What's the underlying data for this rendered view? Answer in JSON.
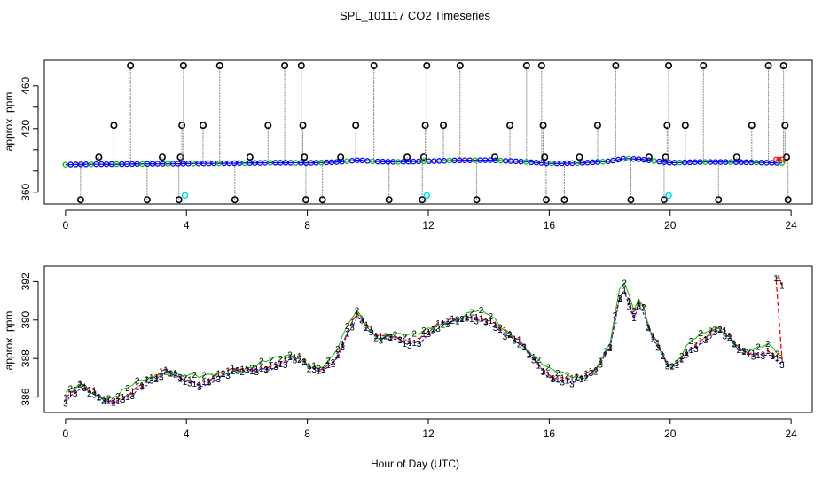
{
  "title": "SPL_101117  CO2 Timeseries",
  "xlabel": "Hour of Day (UTC)",
  "chart_data": [
    {
      "type": "line",
      "panel": "top",
      "ylabel": "approx. ppm",
      "xlim": [
        -0.7,
        24.7
      ],
      "ylim": [
        349,
        484
      ],
      "x_ticks": [
        0,
        4,
        8,
        12,
        16,
        20,
        24
      ],
      "y_ticks": [
        360,
        380,
        400,
        420,
        440,
        460
      ],
      "y_tick_labels": [
        "360",
        "420",
        "460"
      ],
      "baseline": [
        [
          0,
          386.0
        ],
        [
          1,
          386.4
        ],
        [
          2,
          386.5
        ],
        [
          3,
          386.8
        ],
        [
          4,
          387.0
        ],
        [
          5,
          387.3
        ],
        [
          6,
          387.5
        ],
        [
          7,
          387.9
        ],
        [
          8,
          387.6
        ],
        [
          9,
          388.5
        ],
        [
          9.7,
          390.2
        ],
        [
          10.2,
          389.0
        ],
        [
          11,
          388.6
        ],
        [
          12,
          389.2
        ],
        [
          13,
          390.0
        ],
        [
          14,
          390.2
        ],
        [
          15,
          389.0
        ],
        [
          16,
          387.2
        ],
        [
          17,
          387.5
        ],
        [
          18,
          389.2
        ],
        [
          18.5,
          391.8
        ],
        [
          19,
          391.0
        ],
        [
          20,
          387.8
        ],
        [
          21,
          388.5
        ],
        [
          22,
          388.5
        ],
        [
          23,
          388.0
        ],
        [
          23.7,
          387.6
        ]
      ],
      "spikes": [
        [
          0.5,
          353
        ],
        [
          1.1,
          393
        ],
        [
          1.6,
          423
        ],
        [
          2.15,
          479
        ],
        [
          2.7,
          353
        ],
        [
          3.2,
          393
        ],
        [
          3.75,
          353
        ],
        [
          3.8,
          393
        ],
        [
          3.85,
          423
        ],
        [
          3.9,
          479
        ],
        [
          4.55,
          423
        ],
        [
          5.1,
          479
        ],
        [
          5.6,
          353
        ],
        [
          6.1,
          393
        ],
        [
          6.7,
          423
        ],
        [
          7.25,
          479
        ],
        [
          7.8,
          479
        ],
        [
          7.85,
          423
        ],
        [
          7.9,
          393
        ],
        [
          7.95,
          353
        ],
        [
          8.5,
          353
        ],
        [
          9.1,
          393
        ],
        [
          9.6,
          423
        ],
        [
          10.2,
          479
        ],
        [
          10.7,
          353
        ],
        [
          11.3,
          393
        ],
        [
          11.8,
          353
        ],
        [
          11.85,
          393
        ],
        [
          11.9,
          423
        ],
        [
          11.95,
          479
        ],
        [
          12.5,
          423
        ],
        [
          13.05,
          479
        ],
        [
          13.6,
          353
        ],
        [
          14.2,
          393
        ],
        [
          14.7,
          423
        ],
        [
          15.25,
          479
        ],
        [
          15.75,
          479
        ],
        [
          15.8,
          423
        ],
        [
          15.85,
          393
        ],
        [
          15.9,
          353
        ],
        [
          16.5,
          353
        ],
        [
          17.0,
          393
        ],
        [
          17.6,
          423
        ],
        [
          18.2,
          479
        ],
        [
          18.7,
          353
        ],
        [
          19.3,
          393
        ],
        [
          19.8,
          353
        ],
        [
          19.85,
          393
        ],
        [
          19.9,
          423
        ],
        [
          19.95,
          479
        ],
        [
          20.5,
          423
        ],
        [
          21.1,
          479
        ],
        [
          21.6,
          353
        ],
        [
          22.2,
          393
        ],
        [
          22.7,
          423
        ],
        [
          23.25,
          479
        ],
        [
          23.75,
          479
        ],
        [
          23.8,
          423
        ],
        [
          23.85,
          393
        ],
        [
          23.9,
          353
        ]
      ],
      "cyan_markers": [
        [
          3.95,
          357
        ],
        [
          11.95,
          357
        ],
        [
          19.95,
          357
        ]
      ],
      "series": [
        {
          "name": "1",
          "color": "#ff0000"
        },
        {
          "name": "2",
          "color": "#00c000"
        },
        {
          "name": "3",
          "color": "#0000ff"
        },
        {
          "name": "spike",
          "color": "#000000"
        }
      ]
    },
    {
      "type": "line",
      "panel": "bottom",
      "ylabel": "approx. ppm",
      "xlim": [
        -0.7,
        24.7
      ],
      "ylim": [
        385.2,
        392.8
      ],
      "x_ticks": [
        0,
        4,
        8,
        12,
        16,
        20,
        24
      ],
      "y_ticks": [
        386,
        388,
        390,
        392
      ],
      "series": [
        {
          "name": "1",
          "marker": "1",
          "color": "#ff0000"
        },
        {
          "name": "2",
          "marker": "2",
          "color": "#00c000"
        },
        {
          "name": "3",
          "marker": "3",
          "color": "#0000ff"
        }
      ],
      "curve": [
        [
          0,
          386.0
        ],
        [
          0.3,
          386.4
        ],
        [
          0.5,
          386.6
        ],
        [
          0.8,
          386.3
        ],
        [
          1.1,
          386.0
        ],
        [
          1.4,
          385.8
        ],
        [
          1.7,
          385.9
        ],
        [
          2.0,
          386.2
        ],
        [
          2.3,
          386.5
        ],
        [
          2.6,
          386.8
        ],
        [
          3.0,
          387.0
        ],
        [
          3.3,
          387.3
        ],
        [
          3.6,
          387.2
        ],
        [
          3.9,
          386.9
        ],
        [
          4.0,
          387.0
        ],
        [
          4.5,
          386.8
        ],
        [
          5.0,
          387.1
        ],
        [
          5.5,
          387.3
        ],
        [
          6.0,
          387.4
        ],
        [
          6.5,
          387.6
        ],
        [
          7.0,
          387.8
        ],
        [
          7.5,
          388.1
        ],
        [
          7.8,
          387.9
        ],
        [
          8.0,
          387.6
        ],
        [
          8.4,
          387.4
        ],
        [
          8.8,
          387.8
        ],
        [
          9.1,
          388.6
        ],
        [
          9.4,
          389.8
        ],
        [
          9.7,
          390.4
        ],
        [
          10.0,
          389.5
        ],
        [
          10.4,
          389.0
        ],
        [
          10.8,
          389.2
        ],
        [
          11.2,
          389.0
        ],
        [
          11.6,
          389.0
        ],
        [
          12.0,
          389.4
        ],
        [
          12.5,
          389.8
        ],
        [
          13.0,
          390.0
        ],
        [
          13.5,
          390.3
        ],
        [
          14.0,
          390.1
        ],
        [
          14.5,
          389.4
        ],
        [
          15.0,
          388.8
        ],
        [
          15.5,
          388.0
        ],
        [
          16.0,
          387.2
        ],
        [
          16.5,
          387.0
        ],
        [
          17.0,
          386.9
        ],
        [
          17.5,
          387.3
        ],
        [
          18.0,
          388.6
        ],
        [
          18.3,
          391.2
        ],
        [
          18.5,
          391.8
        ],
        [
          18.8,
          390.2
        ],
        [
          19.0,
          391.2
        ],
        [
          19.3,
          389.5
        ],
        [
          19.7,
          388.3
        ],
        [
          20.0,
          387.4
        ],
        [
          20.3,
          387.9
        ],
        [
          20.7,
          388.7
        ],
        [
          21.2,
          389.2
        ],
        [
          21.6,
          389.6
        ],
        [
          22.0,
          389.0
        ],
        [
          22.3,
          388.4
        ],
        [
          22.8,
          388.3
        ],
        [
          23.2,
          388.5
        ],
        [
          23.5,
          388.2
        ],
        [
          23.7,
          387.9
        ]
      ],
      "series1_endpoints": [
        [
          23.5,
          392.2
        ],
        [
          23.6,
          392.2
        ],
        [
          23.7,
          391.8
        ]
      ]
    }
  ]
}
